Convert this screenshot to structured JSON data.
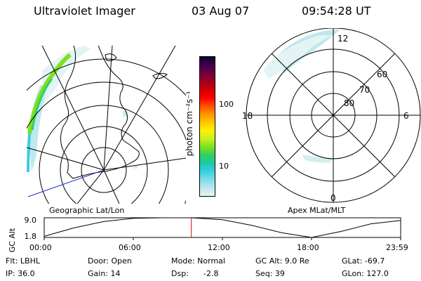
{
  "header": {
    "instrument": "Ultraviolet Imager",
    "date": "03 Aug 07",
    "time": "09:54:28 UT"
  },
  "colorbar": {
    "unit_label": "photon cm⁻²s⁻¹",
    "ticks": [
      "100",
      "10"
    ],
    "stops": [
      "#e8f4f4",
      "#bde8ec",
      "#7fdcea",
      "#36d0e0",
      "#20c8a8",
      "#30d060",
      "#7ee020",
      "#c8f020",
      "#fff200",
      "#ffc800",
      "#ff9400",
      "#ff5000",
      "#ff0000",
      "#d00000",
      "#a00020",
      "#700040",
      "#400050",
      "#100030"
    ]
  },
  "left_panel": {
    "label": "Geographic Lat/Lon"
  },
  "right_panel": {
    "label": "Apex MLat/MLT",
    "mlt_labels": {
      "top": "12",
      "left": "18",
      "right": "6",
      "bottom": "0"
    },
    "lat_labels": [
      "60",
      "70",
      "80"
    ]
  },
  "altitude_plot": {
    "axis_title": "GC Alt",
    "y_ticks": [
      "9.0",
      "1.8"
    ],
    "x_ticks": [
      "00:00",
      "06:00",
      "12:00",
      "18:00",
      "23:59"
    ],
    "current_time_hours": 9.908,
    "series_hours": [
      0,
      2,
      4,
      6,
      8,
      9.9,
      12,
      14,
      16,
      18,
      20,
      22,
      23.98
    ],
    "series_alt_re": [
      2.2,
      5.3,
      7.6,
      8.8,
      9.0,
      9.0,
      8.3,
      6.2,
      3.5,
      1.8,
      4.0,
      6.8,
      8.0
    ]
  },
  "status": {
    "filter": "Flt: LBHL",
    "door": "Door: Open",
    "mode": "Mode: Normal",
    "gc_alt": "GC Alt: 9.0 Re",
    "glat": "GLat: -69.7",
    "ip": "IP: 36.0",
    "gain": "Gain: 14",
    "dsp_label": "Dsp:",
    "dsp_value": "-2.8",
    "seq": "Seq: 39",
    "glon": "GLon: 127.0"
  }
}
